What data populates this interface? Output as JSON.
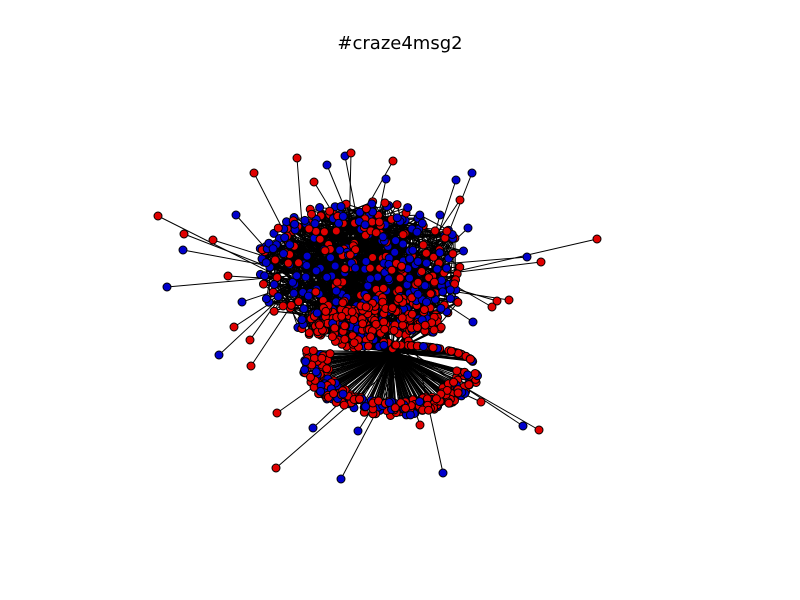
{
  "figure": {
    "title": "#craze4msg2"
  },
  "colors": {
    "background": "#ffffff",
    "edge": "#000000",
    "node_outline": "#000000",
    "node_red": "#e00000",
    "node_blue": "#0000cc"
  }
}
